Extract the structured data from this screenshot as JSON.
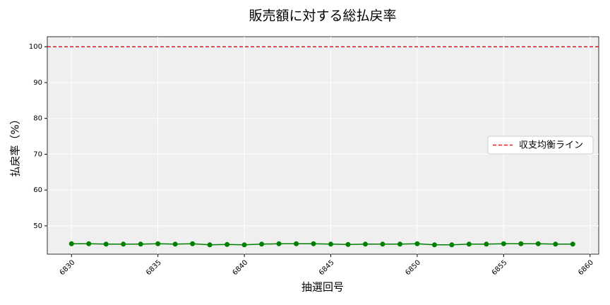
{
  "chart_data": {
    "type": "line",
    "title": "販売額に対する総払戻率",
    "xlabel": "抽選回号",
    "ylabel": "払戻率（%）",
    "x": [
      6830,
      6831,
      6832,
      6833,
      6834,
      6835,
      6836,
      6837,
      6838,
      6839,
      6840,
      6841,
      6842,
      6843,
      6844,
      6845,
      6846,
      6847,
      6848,
      6849,
      6850,
      6851,
      6852,
      6853,
      6854,
      6855,
      6856,
      6857,
      6858,
      6859
    ],
    "series": [
      {
        "name": "払戻率",
        "color": "#008000",
        "values": [
          45.0,
          45.0,
          44.9,
          44.9,
          44.9,
          45.0,
          44.9,
          45.0,
          44.7,
          44.8,
          44.7,
          44.9,
          45.0,
          45.0,
          45.0,
          44.9,
          44.8,
          44.9,
          44.9,
          44.9,
          45.0,
          44.7,
          44.7,
          44.9,
          44.9,
          45.0,
          45.0,
          45.0,
          44.9,
          44.9
        ]
      }
    ],
    "hline": {
      "value": 100,
      "name": "収支均衡ライン",
      "color": "#e41a1c"
    },
    "xlim": [
      6828.6,
      6860.5
    ],
    "xticks": [
      6830,
      6835,
      6840,
      6845,
      6850,
      6855,
      6860
    ],
    "ylim": [
      42.1,
      102.8
    ],
    "yticks": [
      50,
      60,
      70,
      80,
      90,
      100
    ],
    "grid": true,
    "legend": "right"
  }
}
